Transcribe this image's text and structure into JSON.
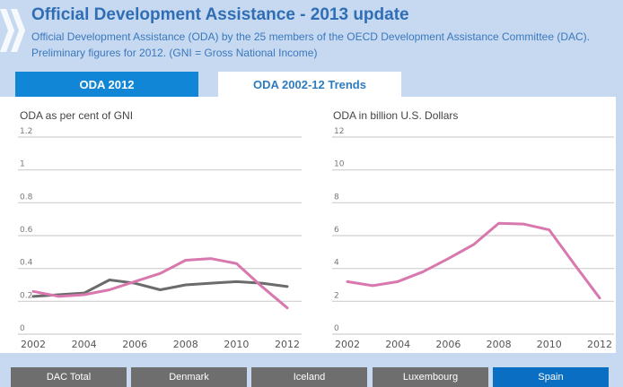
{
  "header": {
    "logo_icon": "oecd-chevrons-icon",
    "title": "Official Development Assistance - 2013 update",
    "subtitle": "Official Development Assistance (ODA) by the 25 members of the OECD Development Assistance Committee (DAC). Preliminary figures for 2012. (GNI = Gross National Income)"
  },
  "tabs": [
    {
      "label": "ODA 2012",
      "active": false
    },
    {
      "label": "ODA 2002-12 Trends",
      "active": true
    }
  ],
  "colors": {
    "accent": "#1286d6",
    "dac_total_line": "#6b6b6b",
    "country_line": "#d878ae",
    "active_button": "#0a6fc2",
    "button": "#6e6e6e"
  },
  "chart_data": [
    {
      "type": "line",
      "title": "ODA as per cent of GNI",
      "xlabel": "",
      "ylabel": "",
      "x": [
        2002,
        2003,
        2004,
        2005,
        2006,
        2007,
        2008,
        2009,
        2010,
        2011,
        2012
      ],
      "xticks": [
        "2002",
        "2004",
        "2006",
        "2008",
        "2010",
        "2012"
      ],
      "yticks": [
        "0",
        "0.2",
        "0.4",
        "0.6",
        "0.8",
        "1",
        "1.2"
      ],
      "ylim": [
        0,
        1.2
      ],
      "grid": true,
      "series": [
        {
          "name": "DAC Total",
          "values": [
            0.23,
            0.24,
            0.25,
            0.33,
            0.31,
            0.27,
            0.3,
            0.31,
            0.32,
            0.31,
            0.29
          ]
        },
        {
          "name": "Spain",
          "values": [
            0.26,
            0.23,
            0.24,
            0.27,
            0.32,
            0.37,
            0.45,
            0.46,
            0.43,
            0.29,
            0.16
          ]
        }
      ]
    },
    {
      "type": "line",
      "title": "ODA in billion U.S. Dollars",
      "xlabel": "",
      "ylabel": "",
      "x": [
        2002,
        2003,
        2004,
        2005,
        2006,
        2007,
        2008,
        2009,
        2010,
        2011,
        2012
      ],
      "xticks": [
        "2002",
        "2004",
        "2006",
        "2008",
        "2010",
        "2012"
      ],
      "yticks": [
        "0",
        "2",
        "4",
        "6",
        "8",
        "10",
        "12"
      ],
      "ylim": [
        0,
        12
      ],
      "grid": true,
      "series": [
        {
          "name": "Spain",
          "values": [
            3.2,
            2.95,
            3.2,
            3.8,
            4.6,
            5.45,
            6.75,
            6.7,
            6.35,
            4.25,
            2.2
          ]
        }
      ]
    }
  ],
  "country_buttons": [
    {
      "label": "DAC Total",
      "active": false
    },
    {
      "label": "Denmark",
      "active": false
    },
    {
      "label": "Iceland",
      "active": false
    },
    {
      "label": "Luxembourg",
      "active": false
    },
    {
      "label": "Spain",
      "active": true
    }
  ]
}
